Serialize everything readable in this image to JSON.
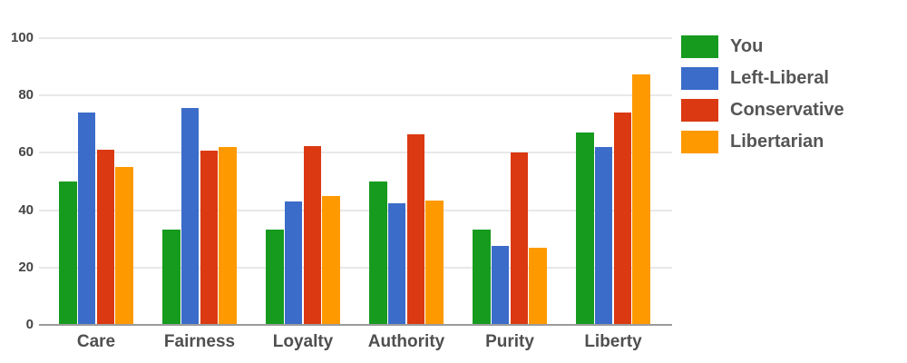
{
  "chart_data": {
    "type": "bar",
    "title": "",
    "categories": [
      "Care",
      "Fairness",
      "Loyalty",
      "Authority",
      "Purity",
      "Liberty"
    ],
    "series": [
      {
        "name": "You",
        "color": "#169b1f",
        "values": [
          50,
          33.3,
          33.3,
          50,
          33.3,
          67
        ]
      },
      {
        "name": "Left-Liberal",
        "color": "#3b6cc9",
        "values": [
          74,
          75.5,
          43,
          42.5,
          27.5,
          62
        ]
      },
      {
        "name": "Conservative",
        "color": "#db3912",
        "values": [
          61,
          60.7,
          62.5,
          66.5,
          60,
          74
        ]
      },
      {
        "name": "Libertarian",
        "color": "#fe9a00",
        "values": [
          55,
          62,
          45,
          43.5,
          27,
          87.5
        ]
      }
    ],
    "xlabel": "",
    "ylabel": "",
    "ylim": [
      0,
      100
    ],
    "yticks": [
      0,
      20,
      40,
      60,
      80,
      100
    ],
    "grid": true,
    "legend_position": "right"
  },
  "style": {
    "grid_color": "#e8e8e8",
    "axis_color": "#9b9b9b",
    "ytick_text_color": "#454545",
    "category_text_color": "#4f4f4f",
    "legend_text_color": "#555555",
    "background": "#ffffff"
  }
}
